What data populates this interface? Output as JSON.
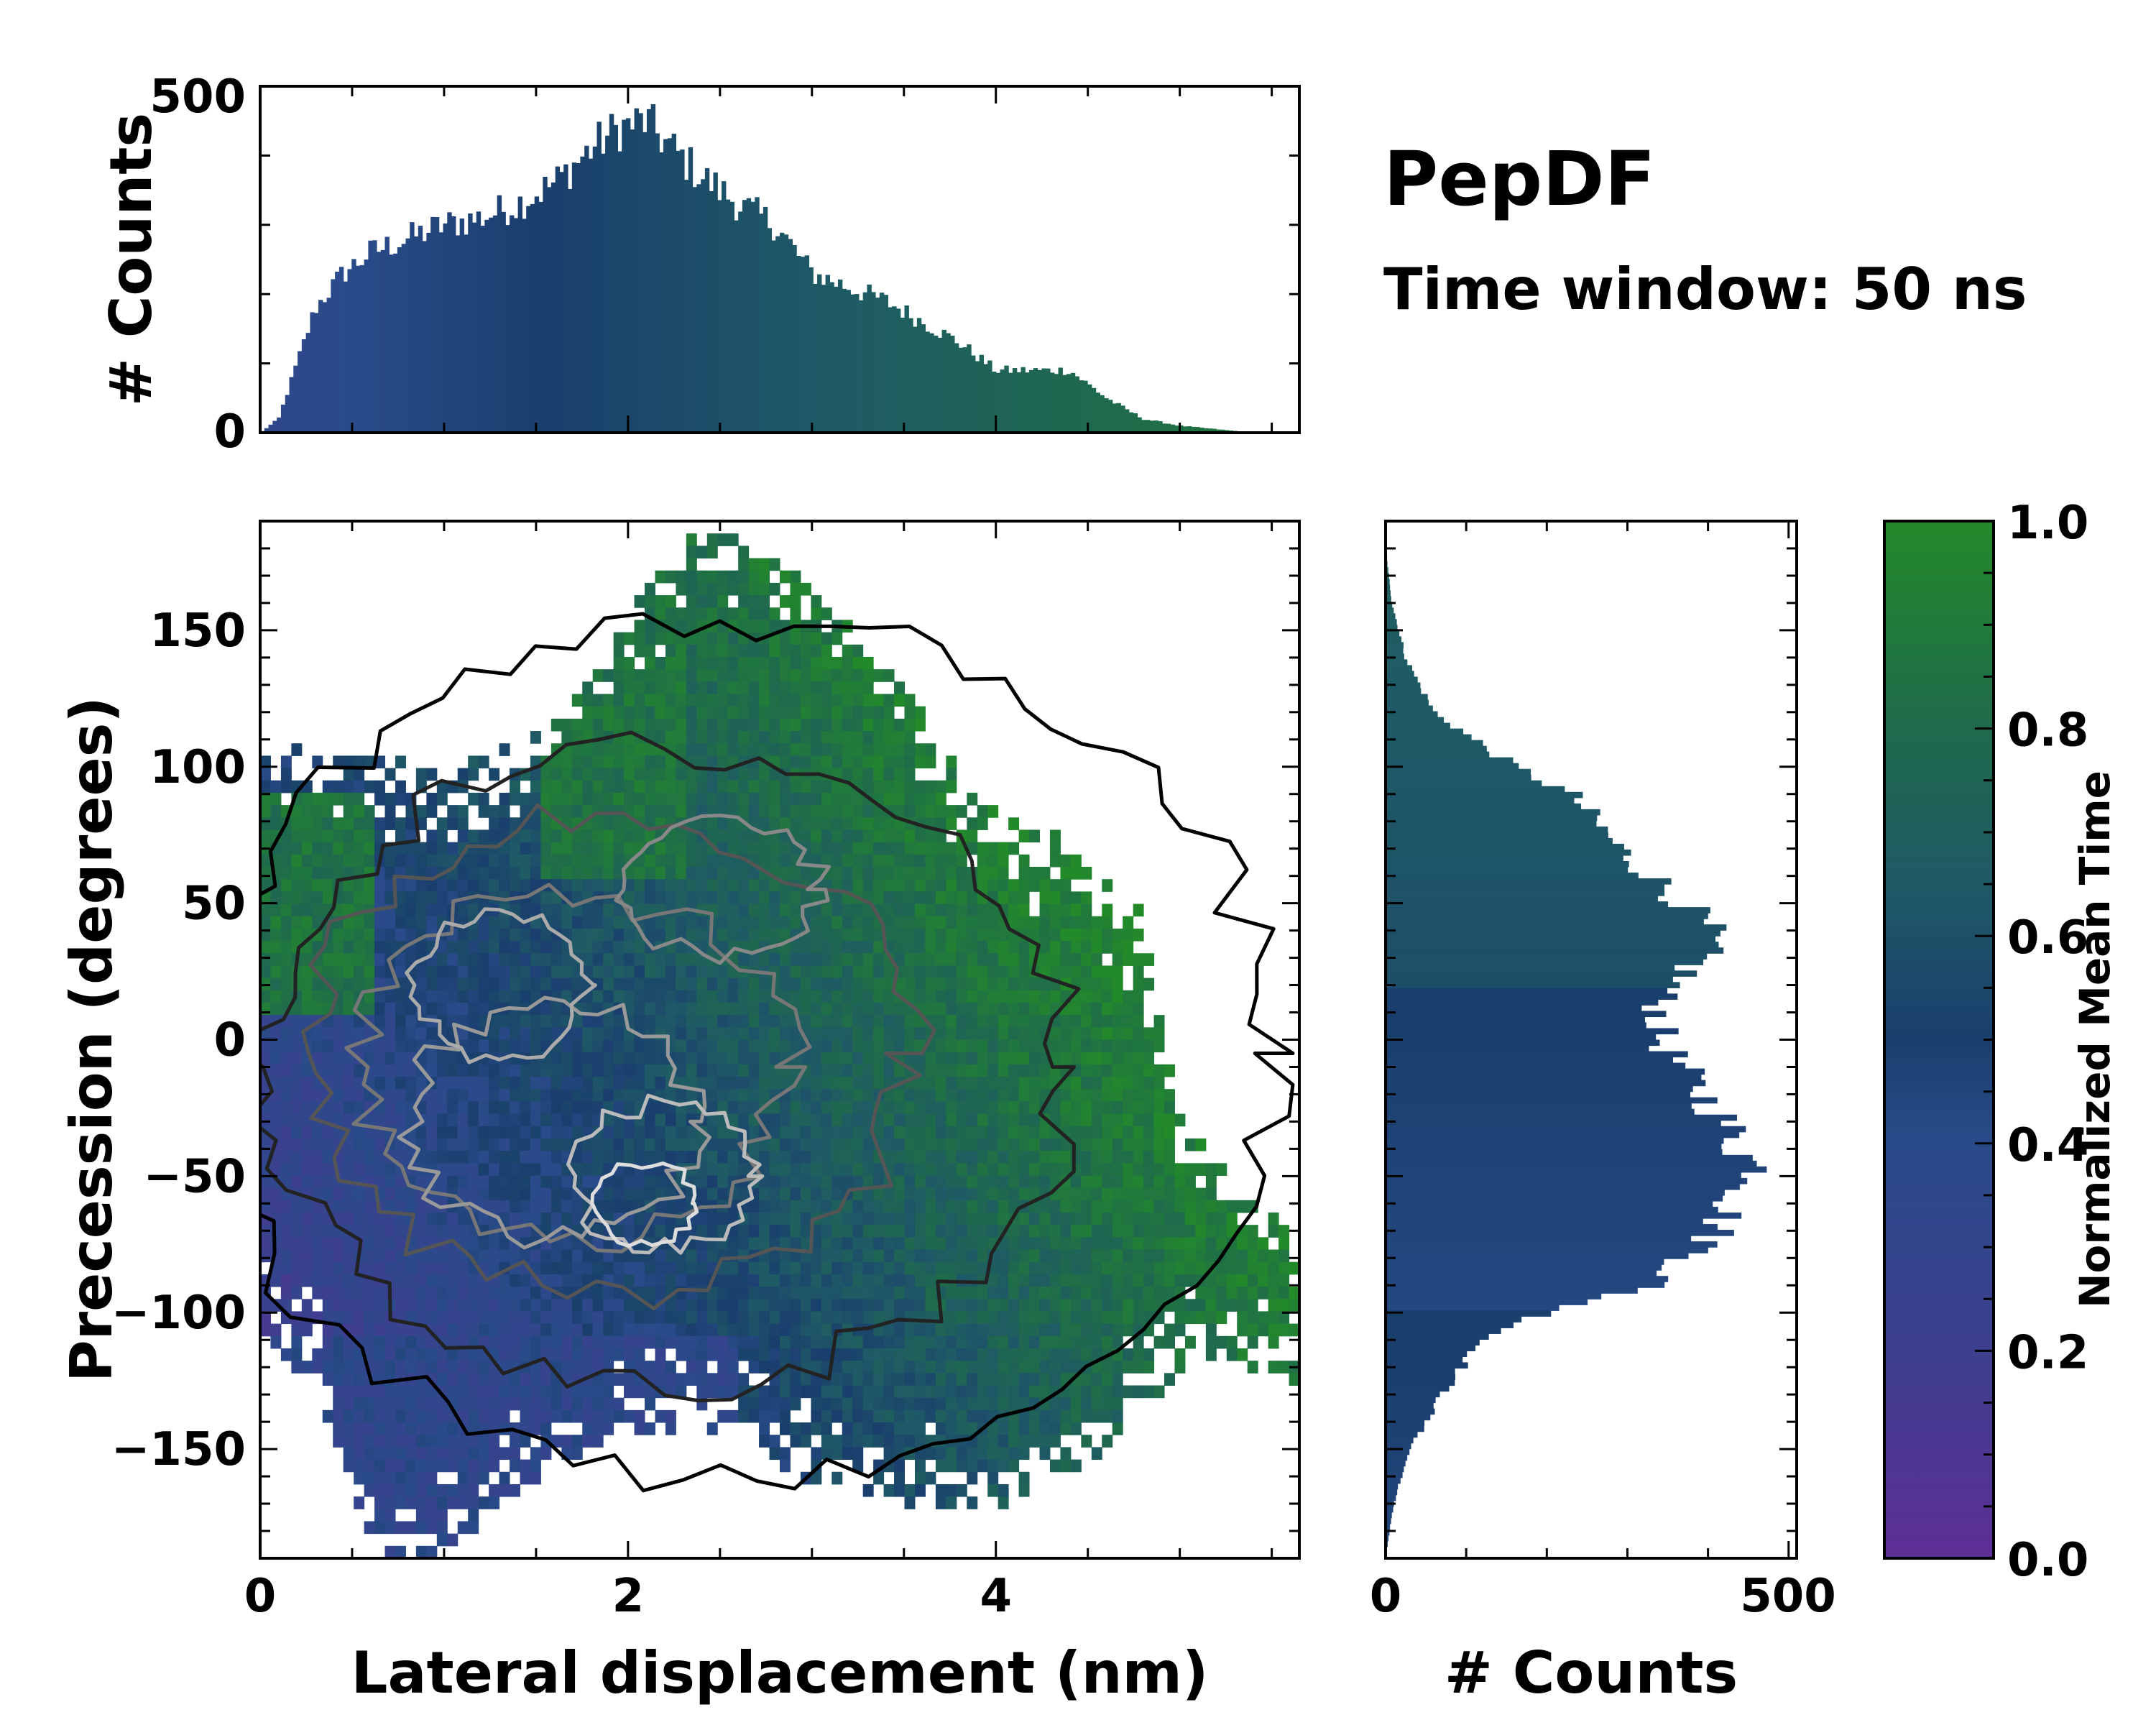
{
  "chart_data": [
    {
      "id": "main",
      "type": "heatmap",
      "description": "2D histogram colored by normalized mean time with density contours",
      "xlabel": "Lateral displacement (nm)",
      "ylabel": "Precession (degrees)",
      "xlim": [
        0,
        5.65
      ],
      "ylim": [
        -190,
        190
      ],
      "xticks": [
        0,
        2,
        4
      ],
      "yticks": [
        150,
        100,
        50,
        0,
        -50,
        -100,
        -150
      ],
      "ytick_labels": [
        "150",
        "100",
        "50",
        "0",
        "−50",
        "−100",
        "−150"
      ],
      "color_field": "Normalized Mean Time"
    },
    {
      "id": "top_histogram",
      "type": "bar",
      "xlabel": "",
      "ylabel": "# Counts",
      "xlim": [
        0,
        5.65
      ],
      "ylim": [
        0,
        500
      ],
      "yticks": [
        0,
        500
      ],
      "profile_x": [
        0,
        0.1,
        0.2,
        0.3,
        0.45,
        0.6,
        0.8,
        1.0,
        1.2,
        1.4,
        1.6,
        1.8,
        1.95,
        2.1,
        2.2,
        2.4,
        2.6,
        2.8,
        3.0,
        3.2,
        3.4,
        3.6,
        3.8,
        4.0,
        4.2,
        4.4,
        4.6,
        4.8,
        5.0,
        5.2,
        5.4,
        5.65
      ],
      "profile_counts": [
        0,
        20,
        100,
        180,
        230,
        260,
        280,
        300,
        310,
        330,
        360,
        410,
        440,
        450,
        420,
        370,
        330,
        300,
        230,
        210,
        190,
        160,
        130,
        90,
        90,
        90,
        50,
        20,
        10,
        5,
        0,
        0
      ]
    },
    {
      "id": "right_histogram",
      "type": "bar",
      "orientation": "horizontal",
      "xlabel": "# Counts",
      "xlim": [
        0,
        510
      ],
      "xticks": [
        0,
        500
      ],
      "profile_y": [
        -190,
        -170,
        -150,
        -130,
        -110,
        -100,
        -90,
        -75,
        -60,
        -50,
        -40,
        -30,
        -15,
        0,
        15,
        30,
        40,
        50,
        70,
        90,
        100,
        120,
        140,
        160,
        175,
        190
      ],
      "profile_counts": [
        0,
        10,
        30,
        70,
        120,
        200,
        330,
        400,
        430,
        470,
        440,
        420,
        380,
        340,
        340,
        390,
        400,
        370,
        290,
        230,
        160,
        60,
        25,
        8,
        2,
        0
      ]
    },
    {
      "id": "colorbar",
      "type": "colorbar",
      "label": "Normalized Mean Time",
      "range": [
        0.0,
        1.0
      ],
      "ticks": [
        "0.0",
        "0.2",
        "0.4",
        "0.6",
        "0.8",
        "1.0"
      ],
      "colors": [
        "#5e2f96",
        "#3d3f8f",
        "#2a4b8a",
        "#1a3f6d",
        "#1e4e6e",
        "#1f6060",
        "#1f6a4c",
        "#238a2a"
      ]
    }
  ],
  "annotations": {
    "title": "PepDF",
    "subtitle": "Time window: 50 ns"
  }
}
